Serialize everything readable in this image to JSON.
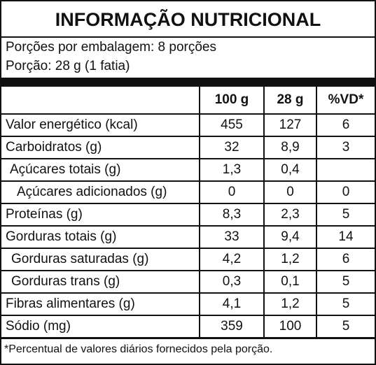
{
  "header": {
    "title": "INFORMAÇÃO NUTRICIONAL",
    "servings_per_package": "Porções por embalagem: 8 porções",
    "serving_size": "Porção: 28 g (1 fatia)"
  },
  "table": {
    "columns": [
      "100 g",
      "28 g",
      "%VD*"
    ],
    "rows": [
      [
        "Valor energético (kcal)",
        "455",
        "127",
        "6"
      ],
      [
        "Carboidratos (g)",
        "32",
        "8,9",
        "3"
      ],
      [
        "Açúcares totais (g)",
        "1,3",
        "0,4"
      ],
      [
        "Açúcares adicionados (g)",
        "0",
        "0",
        "0"
      ],
      [
        "Proteínas (g)",
        "8,3",
        "2,3",
        "5"
      ],
      [
        "Gorduras totais (g)",
        "33",
        "9,4",
        "14"
      ],
      [
        "Gorduras saturadas (g)",
        "4,2",
        "1,2",
        "6"
      ],
      [
        "Gorduras trans (g)",
        "0,3",
        "0,1",
        "5"
      ],
      [
        "Fibras alimentares (g)",
        "4,1",
        "1,2",
        "5"
      ],
      [
        "Sódio (mg)",
        "359",
        "100",
        "5"
      ]
    ]
  },
  "footnote": "*Percentual de valores diários fornecidos pela porção."
}
